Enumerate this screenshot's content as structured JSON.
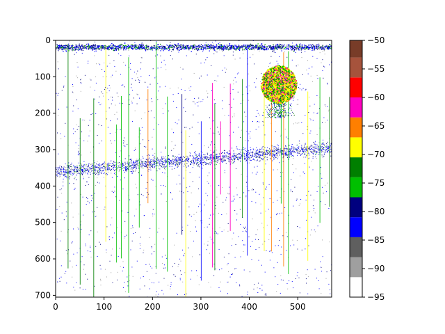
{
  "chart_data": {
    "type": "heatmap",
    "title": "",
    "xlabel": "",
    "ylabel": "",
    "xlim": [
      0,
      570
    ],
    "ylim": [
      705,
      0
    ],
    "x_ticks": [
      0,
      100,
      200,
      300,
      400,
      500
    ],
    "y_ticks": [
      0,
      100,
      200,
      300,
      400,
      500,
      600,
      700
    ],
    "grid": false,
    "colorbar": {
      "range": [
        -95,
        -50
      ],
      "ticks": [
        -50,
        -55,
        -60,
        -65,
        -70,
        -75,
        -80,
        -85,
        -90,
        -95
      ],
      "bins": [
        {
          "from": -95.0,
          "to": -91.5,
          "color": "#ffffff"
        },
        {
          "from": -91.5,
          "to": -88.0,
          "color": "#9f9f9f"
        },
        {
          "from": -88.0,
          "to": -84.5,
          "color": "#5f5f5f"
        },
        {
          "from": -84.5,
          "to": -81.0,
          "color": "#0000ff"
        },
        {
          "from": -81.0,
          "to": -77.5,
          "color": "#00007f"
        },
        {
          "from": -77.5,
          "to": -74.0,
          "color": "#00bf00"
        },
        {
          "from": -74.0,
          "to": -70.5,
          "color": "#007f00"
        },
        {
          "from": -70.5,
          "to": -67.0,
          "color": "#ffff00"
        },
        {
          "from": -67.0,
          "to": -63.5,
          "color": "#ff7f00"
        },
        {
          "from": -63.5,
          "to": -60.0,
          "color": "#ff00bf"
        },
        {
          "from": -60.0,
          "to": -56.5,
          "color": "#ff0000"
        },
        {
          "from": -56.5,
          "to": -53.0,
          "color": "#a6533c"
        },
        {
          "from": -53.0,
          "to": -50.0,
          "color": "#783c28"
        }
      ]
    },
    "features": [
      {
        "kind": "surface_band",
        "x_range": [
          0,
          570
        ],
        "y_center": 18,
        "y_halfwidth": 8
      },
      {
        "kind": "scattering_layer",
        "x_start": 0,
        "x_end": 570,
        "y_at_start": 360,
        "y_at_end": 295,
        "halfwidth": 18
      },
      {
        "kind": "dense_school",
        "x_center": 460,
        "y_center": 120,
        "x_radius": 37,
        "y_radius": 52,
        "dominant_colors": [
          "#ffff00",
          "#007f00",
          "#00bf00",
          "#ff7f00"
        ]
      },
      {
        "kind": "vertical_streaks",
        "x_positions": [
          25,
          50,
          78,
          103,
          125,
          135,
          150,
          172,
          190,
          207,
          230,
          260,
          268,
          300,
          323,
          328,
          340,
          360,
          385,
          395,
          430,
          445,
          465,
          470,
          480,
          520,
          545,
          565
        ]
      }
    ]
  }
}
